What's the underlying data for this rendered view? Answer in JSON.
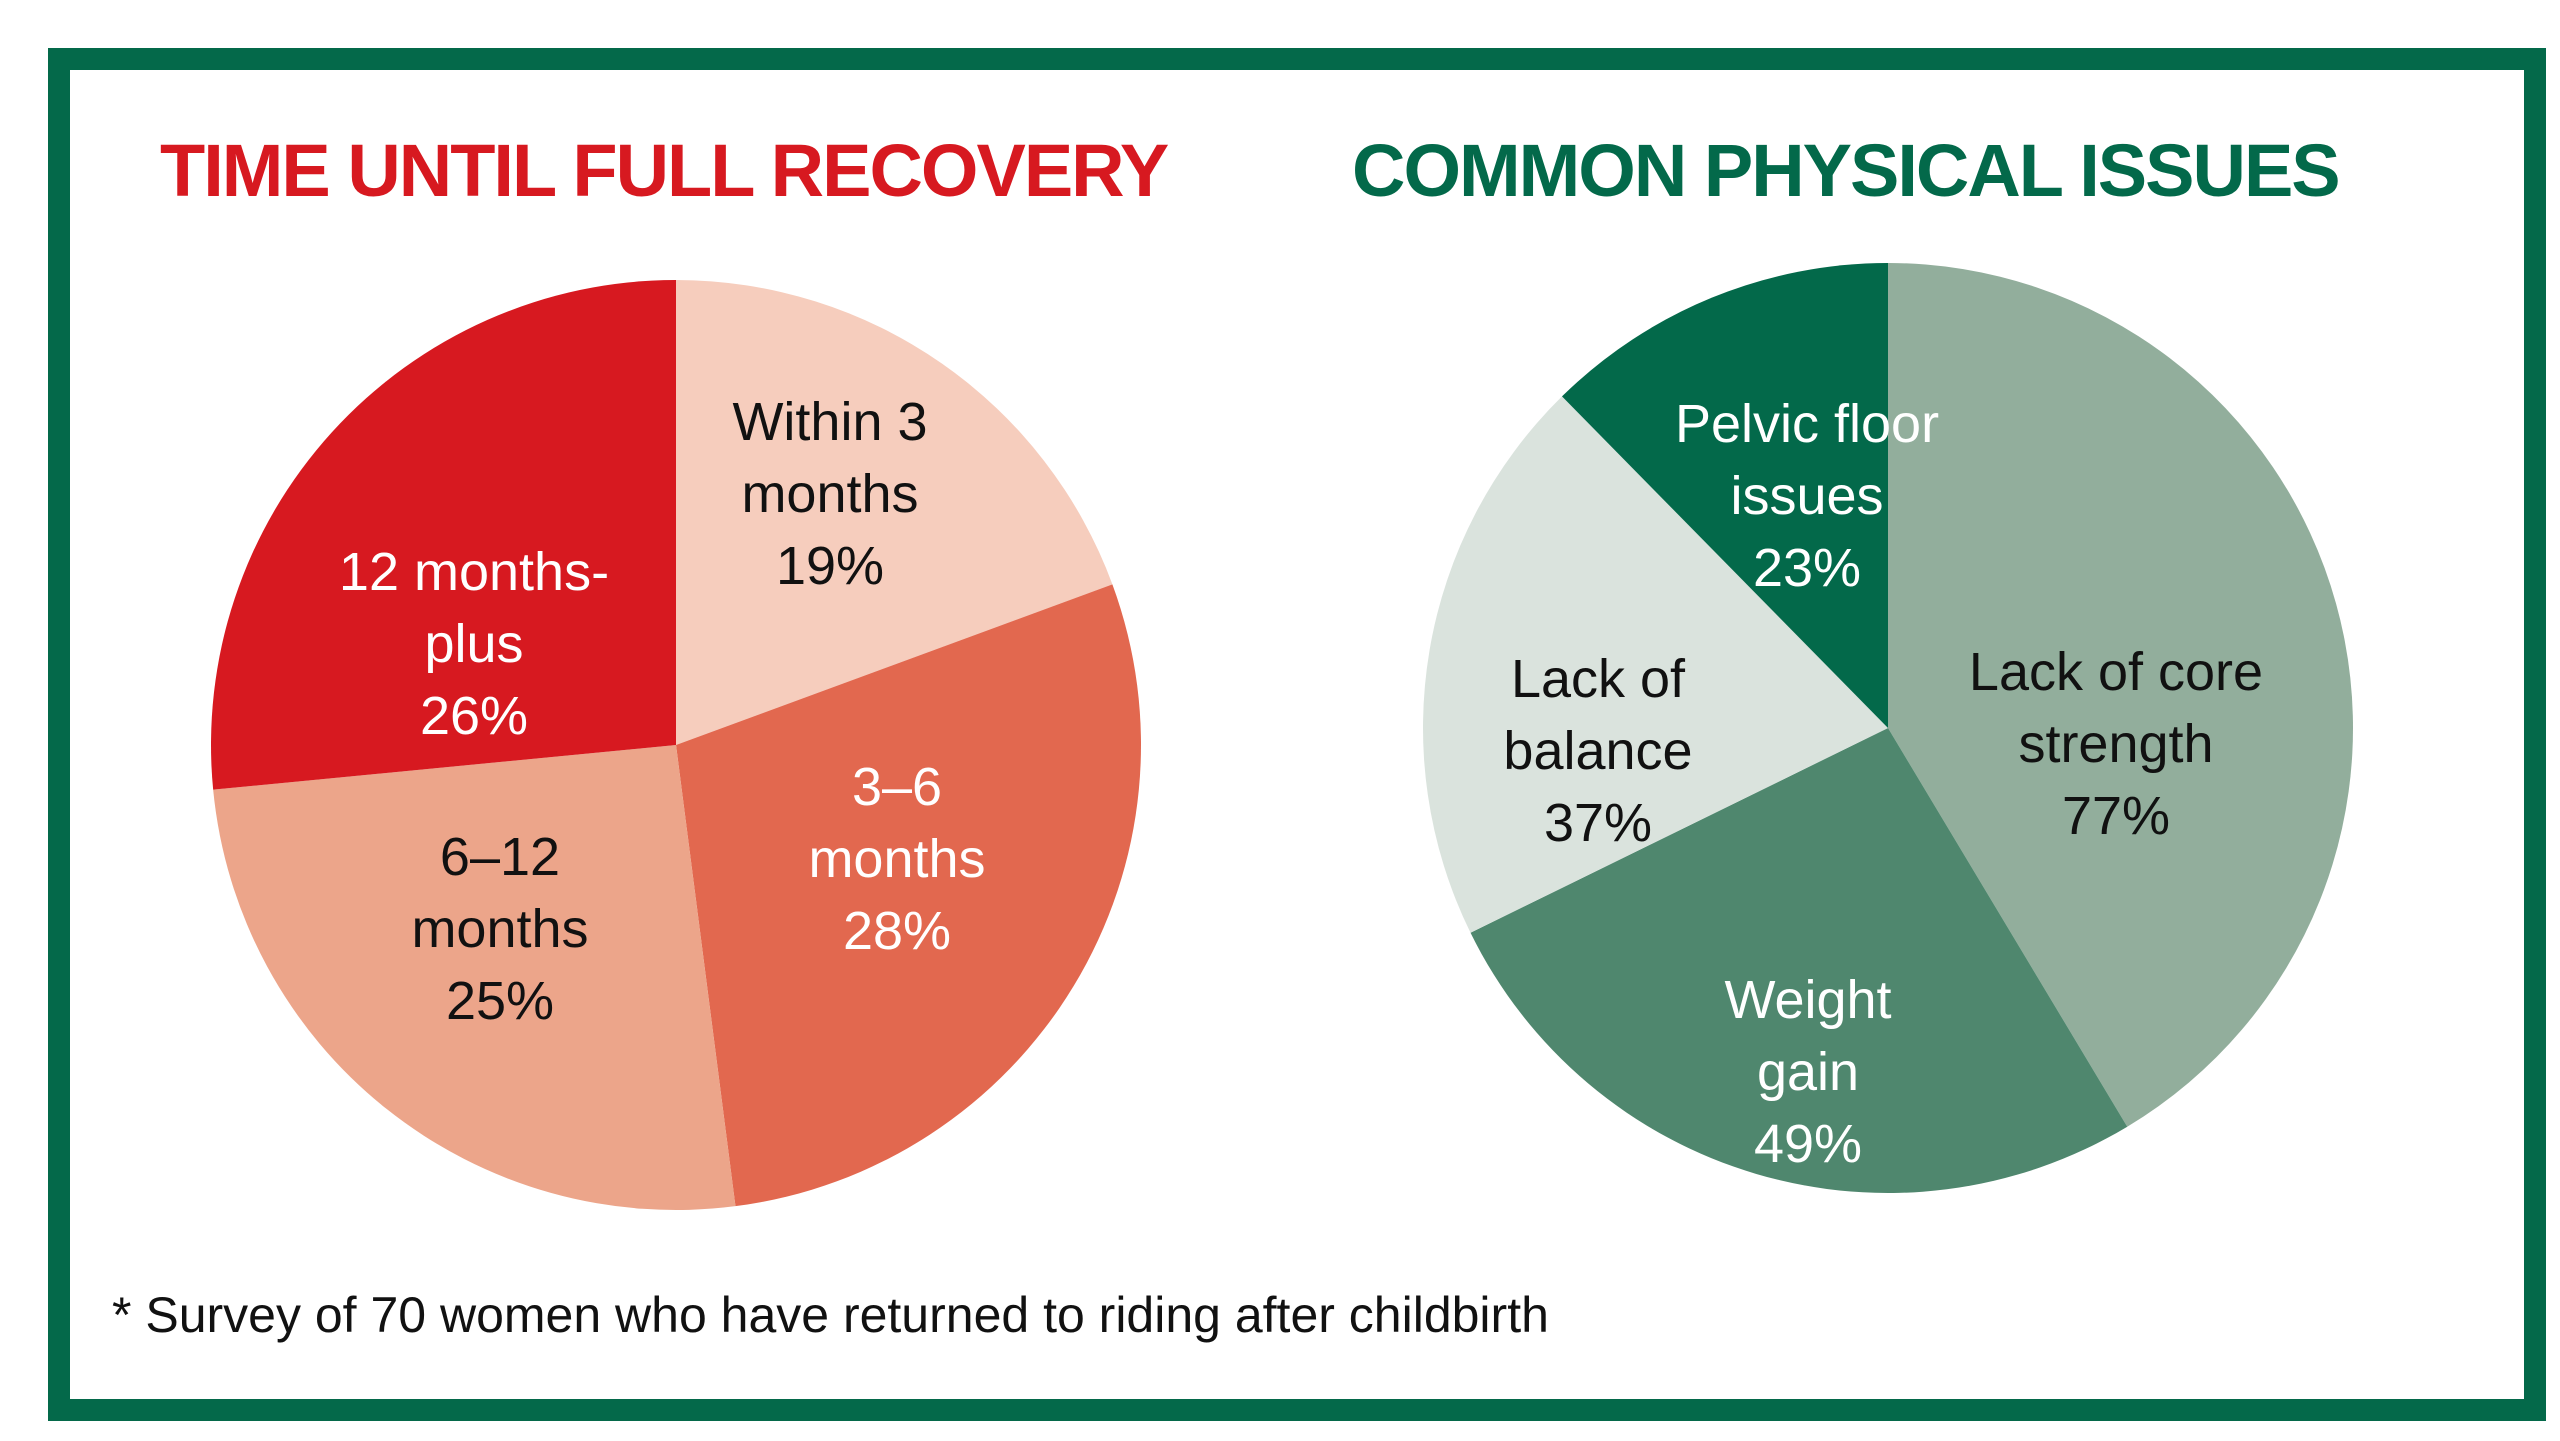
{
  "colors": {
    "border": "#04694a",
    "left_title": "#d71920",
    "right_title": "#03694a"
  },
  "chart_data": [
    {
      "type": "pie",
      "title": "TIME UNTIL FULL RECOVERY",
      "slices": [
        {
          "lines": [
            "Within 3",
            "months",
            "19%"
          ],
          "value": 19,
          "color": "#f6cdbd",
          "text_color": "#111111"
        },
        {
          "lines": [
            "3–6",
            "months",
            "28%"
          ],
          "value": 28,
          "color": "#e2684f",
          "text_color": "#ffffff"
        },
        {
          "lines": [
            "6–12",
            "months",
            "25%"
          ],
          "value": 25,
          "color": "#eca58a",
          "text_color": "#111111"
        },
        {
          "lines": [
            "12 months-",
            "plus",
            "26%"
          ],
          "value": 26,
          "color": "#d71920",
          "text_color": "#ffffff"
        }
      ]
    },
    {
      "type": "pie",
      "title": "COMMON PHYSICAL ISSUES",
      "slices": [
        {
          "lines": [
            "Lack of core",
            "strength",
            "77%"
          ],
          "value": 77,
          "color": "#92ae9c",
          "text_color": "#111111"
        },
        {
          "lines": [
            "Weight",
            "gain",
            "49%"
          ],
          "value": 49,
          "color": "#4f876e",
          "text_color": "#ffffff"
        },
        {
          "lines": [
            "Lack of",
            "balance",
            "37%"
          ],
          "value": 37,
          "color": "#dae3dd",
          "text_color": "#111111"
        },
        {
          "lines": [
            "Pelvic floor",
            "issues",
            "23%"
          ],
          "value": 23,
          "color": "#03694a",
          "text_color": "#ffffff"
        }
      ]
    }
  ],
  "footnote": "* Survey of 70 women who have returned to riding after childbirth"
}
